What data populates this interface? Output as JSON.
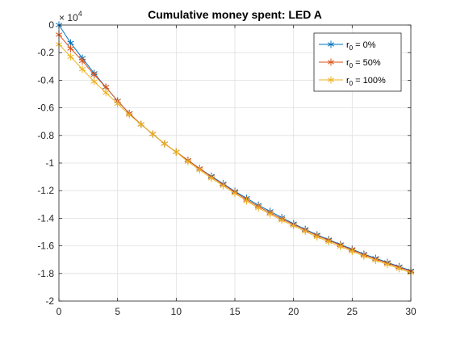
{
  "chart_data": {
    "type": "line",
    "title": "Cumulative money spent: LED A",
    "xlabel": "",
    "ylabel": "",
    "y_exponent_label": "× 10",
    "y_exponent_power": "4",
    "y_scale_factor": 10000,
    "xlim": [
      0,
      30
    ],
    "ylim": [
      -20000,
      0
    ],
    "x_ticks": [
      0,
      5,
      10,
      15,
      20,
      25,
      30
    ],
    "y_ticks": [
      0,
      -0.2,
      -0.4,
      -0.6,
      -0.8,
      -1,
      -1.2,
      -1.4,
      -1.6,
      -1.8,
      -2
    ],
    "grid": true,
    "legend_position": "top-right",
    "marker": "asterisk",
    "x": [
      0,
      1,
      2,
      3,
      4,
      5,
      6,
      7,
      8,
      9,
      10,
      11,
      12,
      13,
      14,
      15,
      16,
      17,
      18,
      19,
      20,
      21,
      22,
      23,
      24,
      25,
      26,
      27,
      28,
      29,
      30
    ],
    "series": [
      {
        "name_base": "r",
        "name_sub": "0",
        "name_suffix": " = 0%",
        "color": "#0072BD",
        "values": [
          0,
          -1300,
          -2400,
          -3500,
          -4500,
          -5500,
          -6400,
          -7200,
          -7900,
          -8600,
          -9200,
          -9800,
          -10400,
          -10950,
          -11500,
          -12050,
          -12550,
          -13050,
          -13500,
          -13950,
          -14400,
          -14800,
          -15200,
          -15550,
          -15900,
          -16250,
          -16600,
          -16900,
          -17200,
          -17500,
          -17800
        ]
      },
      {
        "name_base": "r",
        "name_sub": "0",
        "name_suffix": " = 50%",
        "color": "#D95319",
        "values": [
          -700,
          -1700,
          -2600,
          -3600,
          -4500,
          -5500,
          -6400,
          -7200,
          -7900,
          -8600,
          -9200,
          -9800,
          -10400,
          -11000,
          -11550,
          -12100,
          -12650,
          -13150,
          -13600,
          -14050,
          -14450,
          -14850,
          -15250,
          -15600,
          -15950,
          -16300,
          -16650,
          -16950,
          -17250,
          -17550,
          -17850
        ]
      },
      {
        "name_base": "r",
        "name_sub": "0",
        "name_suffix": " = 100%",
        "color": "#EDB120",
        "values": [
          -1400,
          -2300,
          -3200,
          -4100,
          -4900,
          -5700,
          -6500,
          -7200,
          -7900,
          -8600,
          -9200,
          -9900,
          -10500,
          -11100,
          -11650,
          -12200,
          -12750,
          -13250,
          -13700,
          -14150,
          -14550,
          -14950,
          -15350,
          -15700,
          -16050,
          -16400,
          -16750,
          -17050,
          -17350,
          -17650,
          -17950
        ]
      }
    ]
  }
}
